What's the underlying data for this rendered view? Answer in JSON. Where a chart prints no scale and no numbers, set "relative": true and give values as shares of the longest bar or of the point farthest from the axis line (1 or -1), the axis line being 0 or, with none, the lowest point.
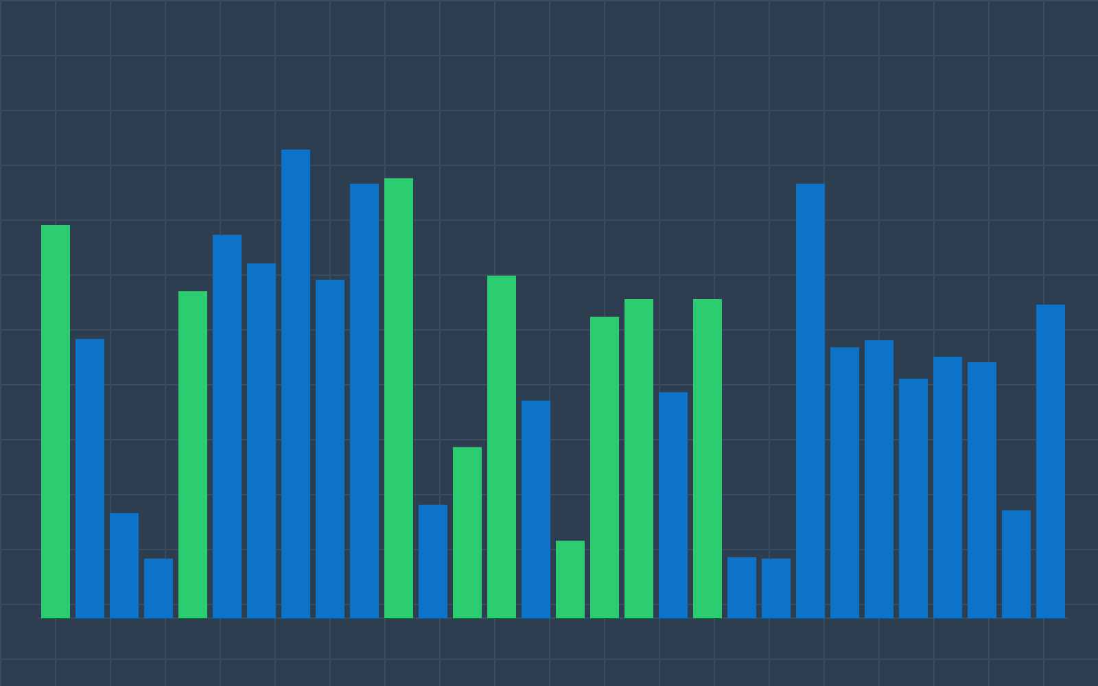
{
  "chart_data": {
    "type": "bar",
    "relative": true,
    "grid": true,
    "categories": [
      null,
      null,
      null,
      null,
      null,
      null,
      null,
      null,
      null,
      null,
      null,
      null,
      null,
      null,
      null,
      null,
      null,
      null,
      null,
      null,
      null,
      null,
      null,
      null,
      null,
      null,
      null,
      null,
      null,
      null
    ],
    "values": [
      0.839,
      0.596,
      0.224,
      0.127,
      0.698,
      0.818,
      0.757,
      1,
      0.722,
      0.927,
      0.939,
      0.242,
      0.365,
      0.731,
      0.464,
      0.165,
      0.643,
      0.681,
      0.482,
      0.681,
      0.13,
      0.127,
      0.927,
      0.578,
      0.593,
      0.511,
      0.558,
      0.546,
      0.23,
      0.669
    ],
    "colors": [
      "#2ecc71",
      "#0c73c9",
      "#0c73c9",
      "#0c73c9",
      "#2ecc71",
      "#0c73c9",
      "#0c73c9",
      "#0c73c9",
      "#0c73c9",
      "#0c73c9",
      "#2ecc71",
      "#0c73c9",
      "#2ecc71",
      "#2ecc71",
      "#0c73c9",
      "#2ecc71",
      "#2ecc71",
      "#2ecc71",
      "#0c73c9",
      "#2ecc71",
      "#0c73c9",
      "#0c73c9",
      "#0c73c9",
      "#0c73c9",
      "#0c73c9",
      "#0c73c9",
      "#0c73c9",
      "#0c73c9",
      "#0c73c9",
      "#0c73c9"
    ]
  }
}
